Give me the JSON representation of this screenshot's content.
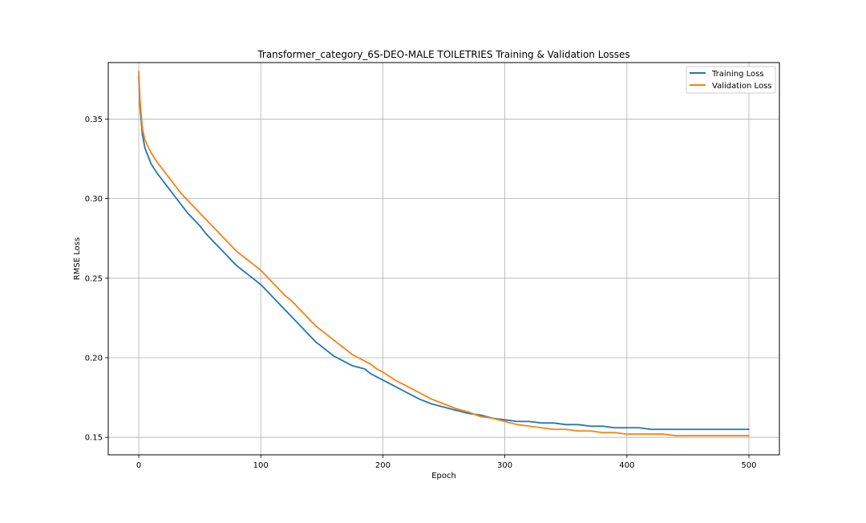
{
  "chart_data": {
    "type": "line",
    "title": "Transformer_category_6S-DEO-MALE TOILETRIES Training & Validation Losses",
    "xlabel": "Epoch",
    "ylabel": "RMSE Loss",
    "xlim": [
      -25,
      525
    ],
    "ylim": [
      0.139,
      0.3855
    ],
    "xticks": [
      0,
      100,
      200,
      300,
      400,
      500
    ],
    "yticks": [
      0.15,
      0.2,
      0.25,
      0.3,
      0.35
    ],
    "xtick_labels": [
      "0",
      "100",
      "200",
      "300",
      "400",
      "500"
    ],
    "ytick_labels": [
      "0.15",
      "0.20",
      "0.25",
      "0.30",
      "0.35"
    ],
    "grid": true,
    "legend_position": "upper right",
    "series": [
      {
        "name": "Training Loss",
        "color": "#1f77b4",
        "x": [
          0,
          1,
          2,
          3,
          5,
          8,
          10,
          15,
          20,
          25,
          30,
          35,
          40,
          45,
          50,
          55,
          60,
          65,
          70,
          75,
          80,
          85,
          90,
          95,
          100,
          105,
          110,
          115,
          120,
          125,
          130,
          135,
          140,
          145,
          150,
          155,
          160,
          165,
          170,
          175,
          180,
          185,
          190,
          195,
          200,
          210,
          220,
          230,
          240,
          250,
          260,
          270,
          280,
          290,
          300,
          310,
          320,
          330,
          340,
          350,
          360,
          370,
          380,
          390,
          400,
          410,
          420,
          430,
          440,
          450,
          460,
          470,
          480,
          490,
          500
        ],
        "y": [
          0.377,
          0.358,
          0.349,
          0.34,
          0.332,
          0.326,
          0.322,
          0.316,
          0.311,
          0.306,
          0.301,
          0.296,
          0.291,
          0.287,
          0.283,
          0.278,
          0.274,
          0.27,
          0.266,
          0.262,
          0.258,
          0.255,
          0.252,
          0.249,
          0.246,
          0.242,
          0.238,
          0.234,
          0.23,
          0.226,
          0.222,
          0.218,
          0.214,
          0.21,
          0.207,
          0.204,
          0.201,
          0.199,
          0.197,
          0.195,
          0.194,
          0.193,
          0.19,
          0.188,
          0.186,
          0.182,
          0.178,
          0.174,
          0.171,
          0.169,
          0.167,
          0.165,
          0.164,
          0.162,
          0.161,
          0.16,
          0.16,
          0.159,
          0.159,
          0.158,
          0.158,
          0.157,
          0.157,
          0.156,
          0.156,
          0.156,
          0.155,
          0.155,
          0.155,
          0.155,
          0.155,
          0.155,
          0.155,
          0.155,
          0.155
        ]
      },
      {
        "name": "Validation Loss",
        "color": "#ff7f0e",
        "x": [
          0,
          1,
          2,
          3,
          5,
          8,
          10,
          15,
          20,
          25,
          30,
          35,
          40,
          45,
          50,
          55,
          60,
          65,
          70,
          75,
          80,
          85,
          90,
          95,
          100,
          105,
          110,
          115,
          120,
          125,
          130,
          135,
          140,
          145,
          150,
          155,
          160,
          165,
          170,
          175,
          180,
          185,
          190,
          195,
          200,
          210,
          220,
          230,
          240,
          250,
          260,
          270,
          280,
          290,
          300,
          310,
          320,
          330,
          340,
          350,
          360,
          370,
          380,
          390,
          400,
          410,
          420,
          430,
          440,
          450,
          460,
          470,
          480,
          490,
          500
        ],
        "y": [
          0.38,
          0.362,
          0.353,
          0.344,
          0.337,
          0.332,
          0.329,
          0.323,
          0.318,
          0.313,
          0.308,
          0.303,
          0.299,
          0.295,
          0.291,
          0.287,
          0.283,
          0.279,
          0.275,
          0.271,
          0.267,
          0.264,
          0.261,
          0.258,
          0.255,
          0.251,
          0.247,
          0.243,
          0.239,
          0.236,
          0.232,
          0.228,
          0.224,
          0.22,
          0.217,
          0.214,
          0.211,
          0.208,
          0.205,
          0.202,
          0.2,
          0.198,
          0.196,
          0.193,
          0.191,
          0.186,
          0.182,
          0.178,
          0.174,
          0.171,
          0.168,
          0.166,
          0.163,
          0.162,
          0.16,
          0.158,
          0.157,
          0.156,
          0.155,
          0.155,
          0.154,
          0.154,
          0.153,
          0.153,
          0.152,
          0.152,
          0.152,
          0.152,
          0.151,
          0.151,
          0.151,
          0.151,
          0.151,
          0.151,
          0.151
        ]
      }
    ]
  }
}
